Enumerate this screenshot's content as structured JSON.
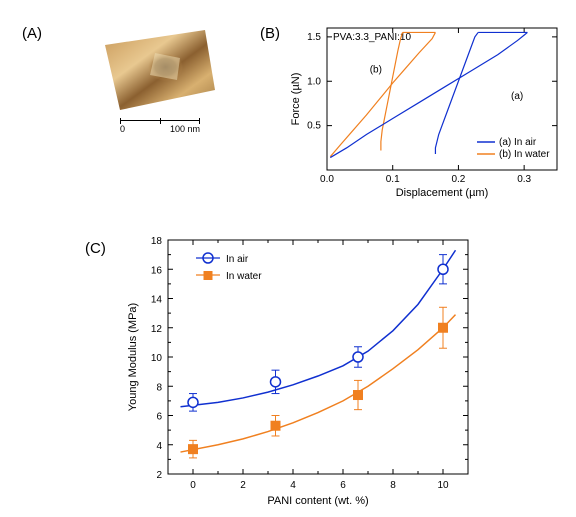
{
  "panelA": {
    "label": "(A)",
    "scalebar": {
      "left": "0",
      "right": "100 nm"
    },
    "afm_colors": {
      "dark": "#6b4a20",
      "mid": "#b08040",
      "light": "#e8c890",
      "highlight": "#f4e4c0"
    }
  },
  "panelB": {
    "label": "(B)",
    "title": "PVA:3.3_PANI:10",
    "xlabel": "Displacement (µm)",
    "ylabel": "Force (µN)",
    "xlim": [
      0.0,
      0.35
    ],
    "xticks": [
      0.0,
      0.1,
      0.2,
      0.3
    ],
    "xtick_labels": [
      "0.0",
      "0.1",
      "0.2",
      "0.3"
    ],
    "ylim": [
      0.0,
      1.6
    ],
    "yticks": [
      0.5,
      1.0,
      1.5
    ],
    "ytick_labels": [
      "0.5",
      "1.0",
      "1.5"
    ],
    "series_a": {
      "color": "#1030d0",
      "label": "(a) In air",
      "approach": [
        [
          0.005,
          0.14
        ],
        [
          0.03,
          0.25
        ],
        [
          0.06,
          0.4
        ],
        [
          0.1,
          0.58
        ],
        [
          0.14,
          0.76
        ],
        [
          0.18,
          0.94
        ],
        [
          0.22,
          1.12
        ],
        [
          0.26,
          1.3
        ],
        [
          0.29,
          1.46
        ],
        [
          0.3,
          1.52
        ],
        [
          0.305,
          1.55
        ]
      ],
      "plateau": [
        [
          0.305,
          1.55
        ],
        [
          0.25,
          1.55
        ],
        [
          0.23,
          1.55
        ]
      ],
      "retract": [
        [
          0.23,
          1.55
        ],
        [
          0.225,
          1.5
        ],
        [
          0.22,
          1.4
        ],
        [
          0.21,
          1.2
        ],
        [
          0.2,
          1.0
        ],
        [
          0.19,
          0.8
        ],
        [
          0.18,
          0.6
        ],
        [
          0.17,
          0.4
        ],
        [
          0.165,
          0.25
        ],
        [
          0.165,
          0.18
        ]
      ],
      "annot": {
        "text": "(a)",
        "x": 0.28,
        "y": 0.8
      }
    },
    "series_b": {
      "color": "#f08020",
      "label": "(b) In water",
      "approach": [
        [
          0.005,
          0.15
        ],
        [
          0.02,
          0.28
        ],
        [
          0.04,
          0.45
        ],
        [
          0.06,
          0.62
        ],
        [
          0.08,
          0.8
        ],
        [
          0.1,
          0.98
        ],
        [
          0.12,
          1.15
        ],
        [
          0.14,
          1.32
        ],
        [
          0.16,
          1.48
        ],
        [
          0.165,
          1.55
        ]
      ],
      "plateau": [
        [
          0.165,
          1.55
        ],
        [
          0.14,
          1.55
        ],
        [
          0.115,
          1.55
        ]
      ],
      "retract": [
        [
          0.115,
          1.55
        ],
        [
          0.112,
          1.48
        ],
        [
          0.108,
          1.35
        ],
        [
          0.104,
          1.2
        ],
        [
          0.1,
          1.05
        ],
        [
          0.096,
          0.9
        ],
        [
          0.092,
          0.75
        ],
        [
          0.088,
          0.6
        ],
        [
          0.084,
          0.45
        ],
        [
          0.082,
          0.32
        ],
        [
          0.082,
          0.22
        ]
      ],
      "annot": {
        "text": "(b)",
        "x": 0.065,
        "y": 1.1
      }
    }
  },
  "panelC": {
    "label": "(C)",
    "xlabel": "PANI content (wt. %)",
    "ylabel": "Young Modulus (MPa)",
    "xlim": [
      -1,
      11
    ],
    "xticks": [
      0,
      2,
      4,
      6,
      8,
      10
    ],
    "xtick_labels": [
      "0",
      "2",
      "4",
      "6",
      "8",
      "10"
    ],
    "ylim": [
      2,
      18
    ],
    "yticks": [
      2,
      4,
      6,
      8,
      10,
      12,
      14,
      16,
      18
    ],
    "ytick_labels": [
      "2",
      "4",
      "6",
      "8",
      "10",
      "12",
      "14",
      "16",
      "18"
    ],
    "series_air": {
      "color": "#1030d0",
      "marker": "open-circle",
      "label": "In air",
      "points": [
        {
          "x": 0,
          "y": 6.9,
          "err": 0.6
        },
        {
          "x": 3.3,
          "y": 8.3,
          "err": 0.8
        },
        {
          "x": 6.6,
          "y": 10.0,
          "err": 0.7
        },
        {
          "x": 10,
          "y": 16.0,
          "err": 1.0
        }
      ],
      "fit": [
        [
          -0.5,
          6.6
        ],
        [
          1,
          6.9
        ],
        [
          2,
          7.2
        ],
        [
          3,
          7.6
        ],
        [
          4,
          8.1
        ],
        [
          5,
          8.7
        ],
        [
          6,
          9.4
        ],
        [
          7,
          10.4
        ],
        [
          8,
          11.8
        ],
        [
          9,
          13.6
        ],
        [
          10,
          16.0
        ],
        [
          10.5,
          17.3
        ]
      ]
    },
    "series_water": {
      "color": "#f08020",
      "marker": "filled-square",
      "label": "In water",
      "points": [
        {
          "x": 0,
          "y": 3.7,
          "err": 0.6
        },
        {
          "x": 3.3,
          "y": 5.3,
          "err": 0.7
        },
        {
          "x": 6.6,
          "y": 7.4,
          "err": 1.0
        },
        {
          "x": 10,
          "y": 12.0,
          "err": 1.4
        }
      ],
      "fit": [
        [
          -0.5,
          3.5
        ],
        [
          1,
          4.0
        ],
        [
          2,
          4.4
        ],
        [
          3,
          4.9
        ],
        [
          4,
          5.5
        ],
        [
          5,
          6.2
        ],
        [
          6,
          7.0
        ],
        [
          7,
          8.0
        ],
        [
          8,
          9.2
        ],
        [
          9,
          10.5
        ],
        [
          10,
          12.0
        ],
        [
          10.5,
          12.9
        ]
      ]
    }
  }
}
